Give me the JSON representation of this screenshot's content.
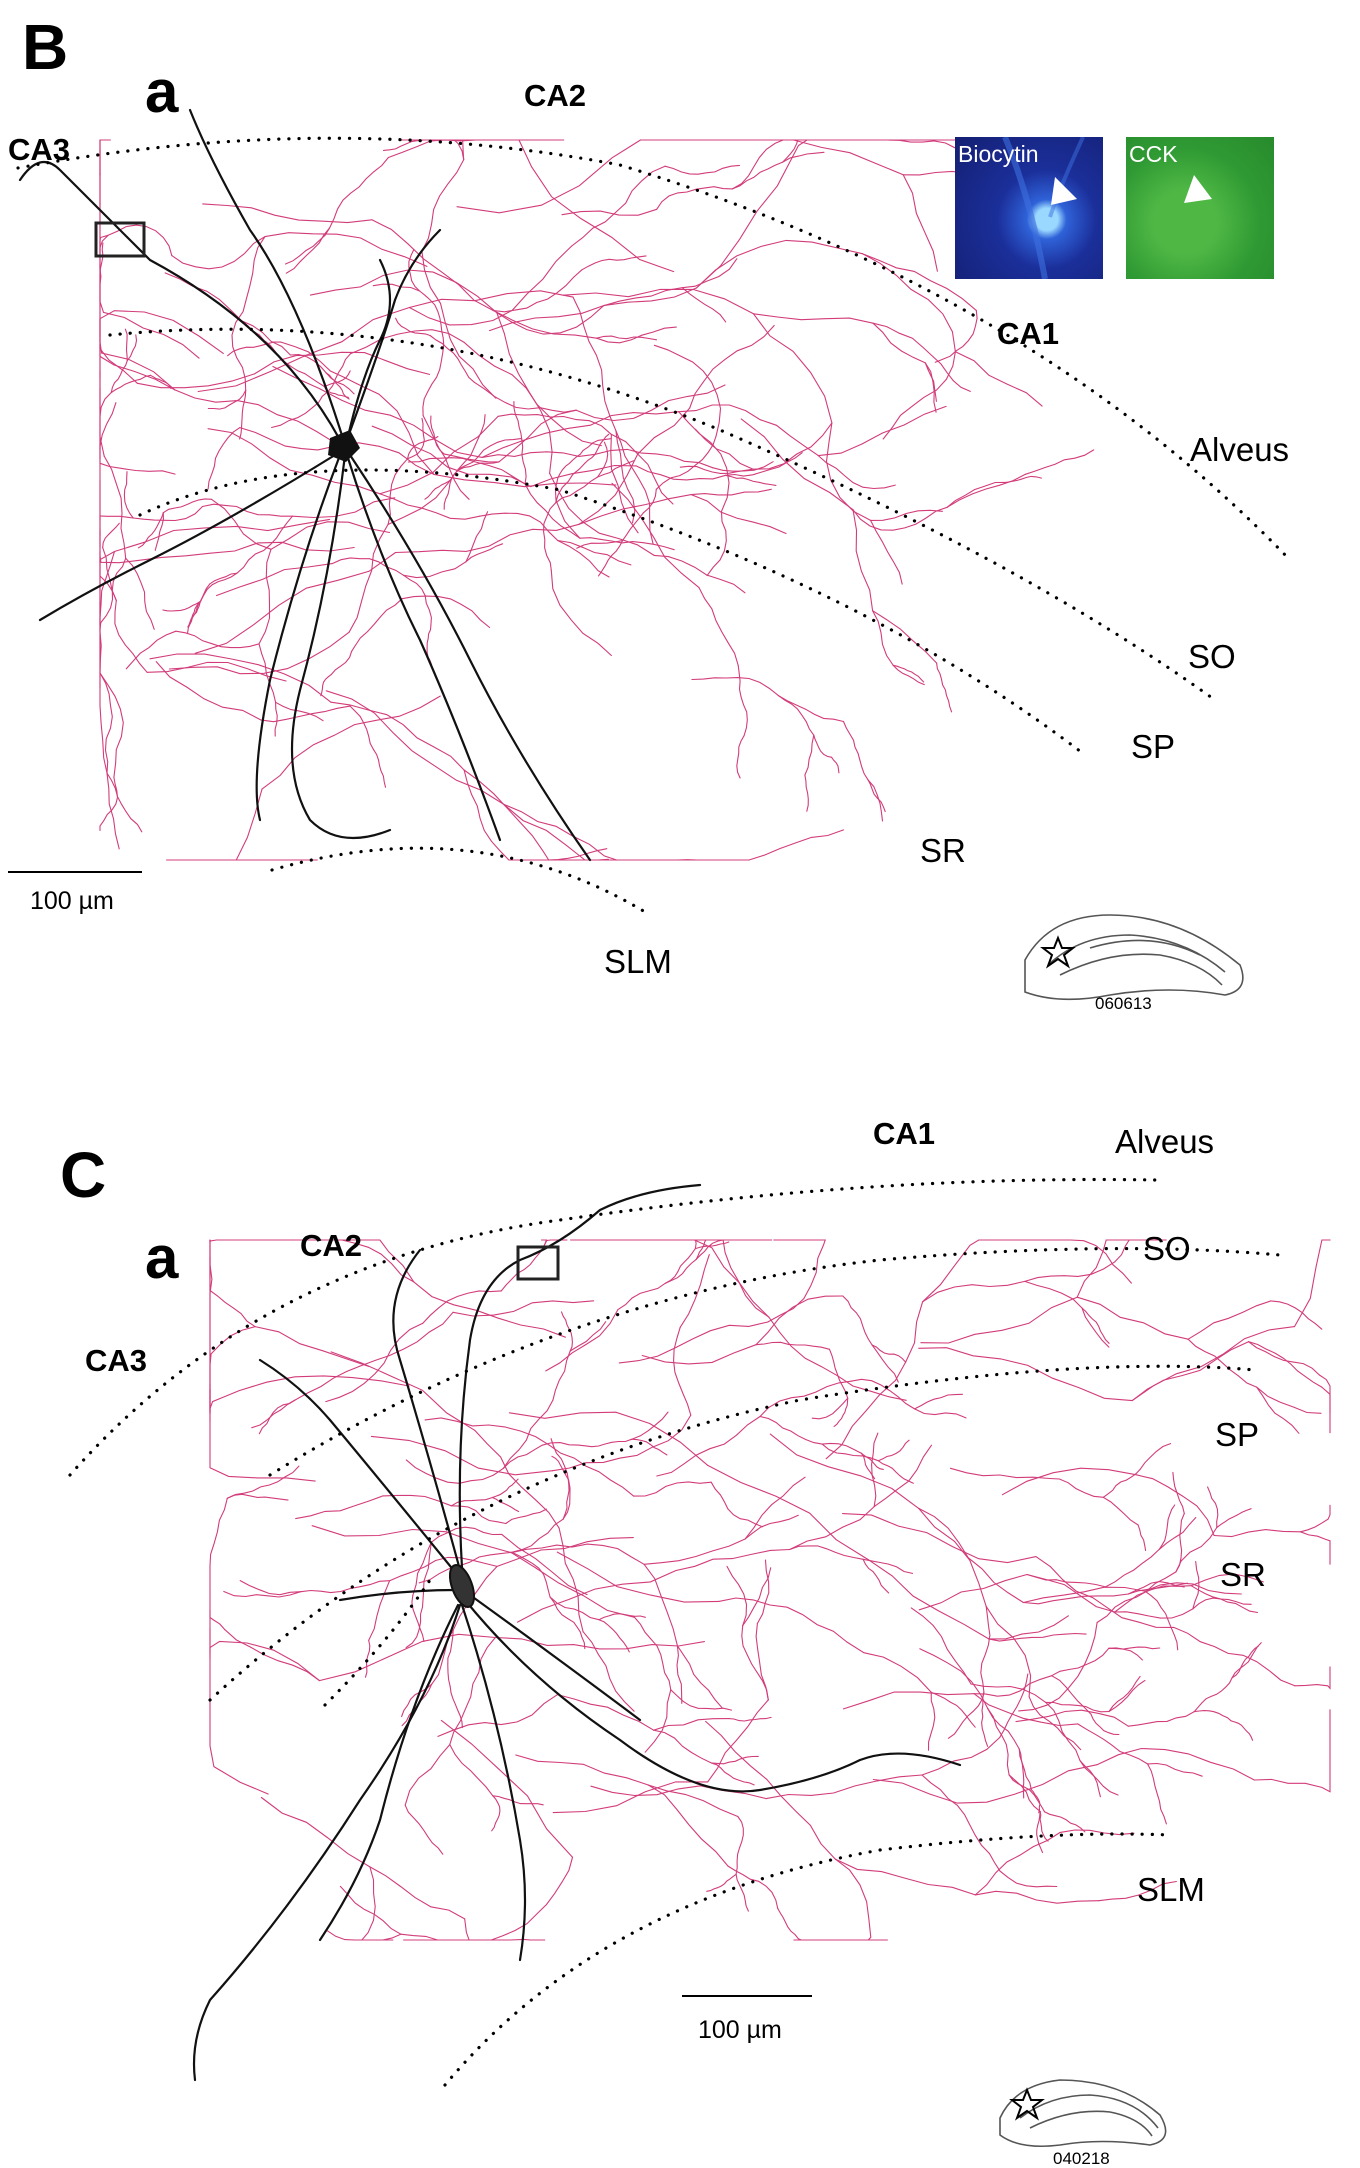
{
  "panels": [
    {
      "letter": "B",
      "sub_label": "a",
      "regions": [
        "CA3",
        "CA2",
        "CA1"
      ],
      "layers": [
        "Alveus",
        "SO",
        "SP",
        "SR",
        "SLM"
      ],
      "scale_bar": "100 µm",
      "insets": [
        {
          "caption": "Biocytin",
          "color": "#1e3ca8"
        },
        {
          "caption": "CCK",
          "color": "#2f9a33"
        }
      ],
      "slice_id": "060613"
    },
    {
      "letter": "C",
      "sub_label": "a",
      "regions": [
        "CA1",
        "CA2",
        "CA3"
      ],
      "layers": [
        "Alveus",
        "SO",
        "SP",
        "SR",
        "SLM"
      ],
      "scale_bar": "100 µm",
      "slice_id": "040218"
    }
  ],
  "colors": {
    "axon": "#d23c7a",
    "dendrite": "#111111",
    "boundary": "#000000"
  }
}
